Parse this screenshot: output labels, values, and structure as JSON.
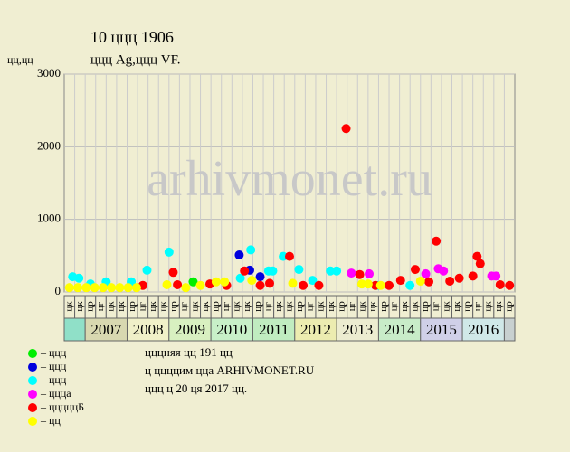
{
  "chart_data": {
    "type": "scatter",
    "title": "10 ццц 1906",
    "subtitle": "ццц Ag,ццц VF.",
    "y_label": "цц,цц",
    "watermark": "arhivmonet.ru",
    "categories": [
      "цк",
      "цк",
      "цр",
      "цг",
      "цк",
      "цк",
      "цр",
      "цг",
      "цк",
      "цк",
      "цр",
      "цг",
      "цк",
      "цк",
      "цр",
      "цг",
      "цк",
      "цк",
      "цр",
      "цг",
      "цк",
      "цк",
      "цр",
      "цг",
      "цк",
      "цк",
      "цр",
      "цг",
      "цк",
      "цк",
      "цр",
      "цг",
      "цк",
      "цк",
      "цр",
      "цг",
      "цк",
      "цк",
      "цр",
      "цг",
      "цк",
      "цк",
      "цр"
    ],
    "years": [
      null,
      "2007",
      "2008",
      "2009",
      "2010",
      "2011",
      "2012",
      "2013",
      "2014",
      "2015",
      "2016",
      null
    ],
    "year_colors": [
      "#90e0c8",
      "#d8d8b0",
      "#f0f0c8",
      "#d8f0c0",
      "#c8f0c8",
      "#c0ecc0",
      "#ececb0",
      "#ececd0",
      "#c8ecc8",
      "#d0d0e8",
      "#d0e8e8",
      "#c8d0d0"
    ],
    "xlim": [
      0,
      43
    ],
    "ylim": [
      0,
      3000
    ],
    "yticks": [
      0,
      1000,
      2000,
      3000
    ],
    "grid": true,
    "series": [
      {
        "name": "– ццц",
        "color": "#00ee00",
        "x": [
          12.3
        ],
        "values": [
          140
        ]
      },
      {
        "name": "– ццц",
        "color": "#0000dd",
        "x": [
          16.7,
          17.7,
          18.7
        ],
        "values": [
          510,
          300,
          210
        ]
      },
      {
        "name": "– ццц",
        "color": "#00ffff",
        "x": [
          0.8,
          1.4,
          2.5,
          4,
          6.4,
          7.9,
          10,
          16.8,
          17.8,
          19.5,
          19.9,
          20.9,
          22.4,
          23.7,
          25.4,
          26,
          30,
          33
        ],
        "values": [
          210,
          190,
          110,
          140,
          140,
          300,
          550,
          190,
          580,
          290,
          290,
          490,
          310,
          160,
          290,
          290,
          90,
          90
        ]
      },
      {
        "name": "– ццца",
        "color": "#ff00ff",
        "x": [
          27.4,
          29.1,
          34.5,
          35.7,
          36.2,
          40.8,
          41.2
        ],
        "values": [
          260,
          250,
          250,
          320,
          290,
          220,
          220
        ]
      },
      {
        "name": "– цццццБ",
        "color": "#ff0000",
        "x": [
          7.5,
          10.4,
          10.8,
          13.9,
          15.5,
          17.2,
          18.7,
          19.6,
          21.5,
          22.8,
          24.3,
          26.9,
          28.2,
          29.7,
          31,
          32.1,
          33.5,
          34.8,
          35.5,
          36.8,
          37.7,
          39,
          39.4,
          39.7,
          41.6,
          42.5
        ],
        "values": [
          90,
          270,
          100,
          110,
          90,
          290,
          90,
          120,
          490,
          90,
          90,
          2250,
          240,
          90,
          90,
          160,
          310,
          140,
          700,
          150,
          190,
          220,
          490,
          390,
          100,
          90
        ]
      },
      {
        "name": "– цц",
        "color": "#ffff00",
        "x": [
          0.5,
          1.3,
          2.1,
          2.9,
          3.7,
          4.5,
          5.3,
          6.1,
          6.9,
          9.8,
          11.6,
          13,
          14.5,
          15.3,
          17.9,
          21.8,
          28.4,
          29,
          30.2,
          34
        ],
        "values": [
          60,
          60,
          60,
          60,
          60,
          60,
          60,
          60,
          60,
          100,
          60,
          90,
          140,
          140,
          160,
          120,
          110,
          110,
          90,
          150
        ]
      }
    ],
    "notes": [
      "цццняя цц 191 цц",
      "ц ццццим цца ARHIVMONET.RU",
      "ццц ц 20 ця 2017 цц."
    ]
  }
}
